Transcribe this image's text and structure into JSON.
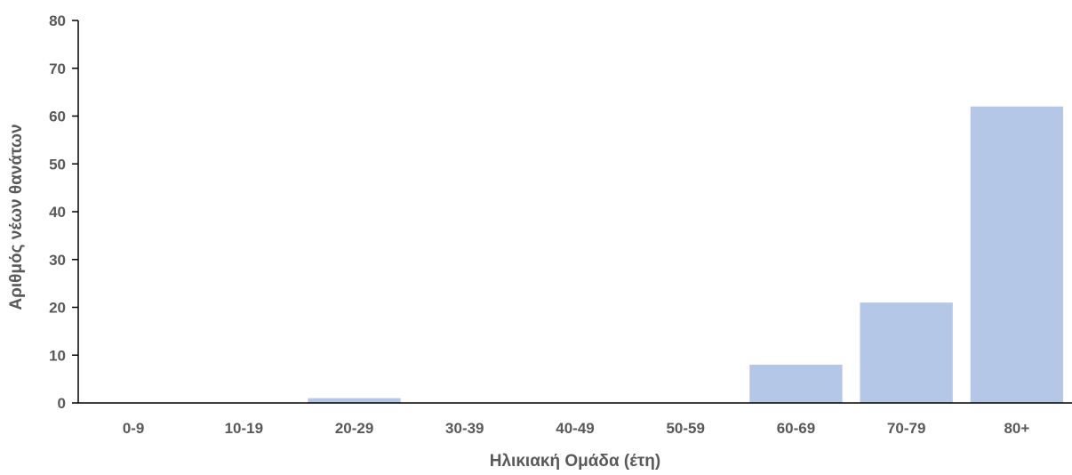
{
  "chart_data": {
    "type": "bar",
    "title": "",
    "xlabel": "Ηλικιακή Ομάδα (έτη)",
    "ylabel": "Αριθμός νέων θανάτων",
    "categories": [
      "0-9",
      "10-19",
      "20-29",
      "30-39",
      "40-49",
      "50-59",
      "60-69",
      "70-79",
      "80+"
    ],
    "values": [
      0,
      0,
      1,
      0,
      0,
      0,
      8,
      21,
      62
    ],
    "ylim": [
      0,
      80
    ],
    "yticks": [
      0,
      10,
      20,
      30,
      40,
      50,
      60,
      70,
      80
    ],
    "grid": false,
    "legend": "none",
    "bar_color": "#b4c7e7",
    "axis_color": "#000000",
    "text_color": "#595959"
  }
}
